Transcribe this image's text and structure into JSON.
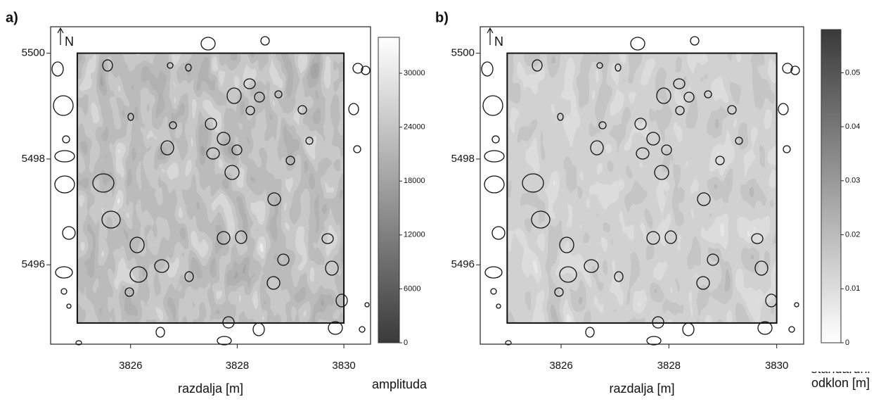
{
  "chart_data": [
    {
      "type": "raster-map",
      "panel_label": "a)",
      "north_label": "N",
      "xlabel": "razdalja [m]",
      "xlim": [
        3824.5,
        3830.5
      ],
      "xticks": [
        3826,
        3828,
        3830
      ],
      "ylim": [
        5494.5,
        5500.5
      ],
      "yticks": [
        5496,
        5498,
        5500
      ],
      "raster_xlim": [
        3825,
        3830
      ],
      "raster_ylim": [
        5494.9,
        5500
      ],
      "colorbar": {
        "label": "amplituda",
        "lim": [
          0,
          34000
        ],
        "ticks": [
          0,
          6000,
          12000,
          18000,
          24000,
          30000
        ],
        "low_color": "#3a3a3a",
        "high_color": "#ffffff"
      }
    },
    {
      "type": "raster-map",
      "panel_label": "b)",
      "north_label": "N",
      "xlabel": "razdalja [m]",
      "xlim": [
        3824.5,
        3830.5
      ],
      "xticks": [
        3826,
        3828,
        3830
      ],
      "ylim": [
        5494.5,
        5500.5
      ],
      "yticks": [
        5496,
        5498,
        5500
      ],
      "raster_xlim": [
        3825,
        3830
      ],
      "raster_ylim": [
        5494.9,
        5500
      ],
      "colorbar": {
        "label": "standardni odklon [m]",
        "lim": [
          0,
          0.058
        ],
        "ticks": [
          0,
          0.01,
          0.02,
          0.03,
          0.04,
          0.05
        ],
        "low_color": "#ffffff",
        "high_color": "#3a3a3a"
      }
    }
  ]
}
